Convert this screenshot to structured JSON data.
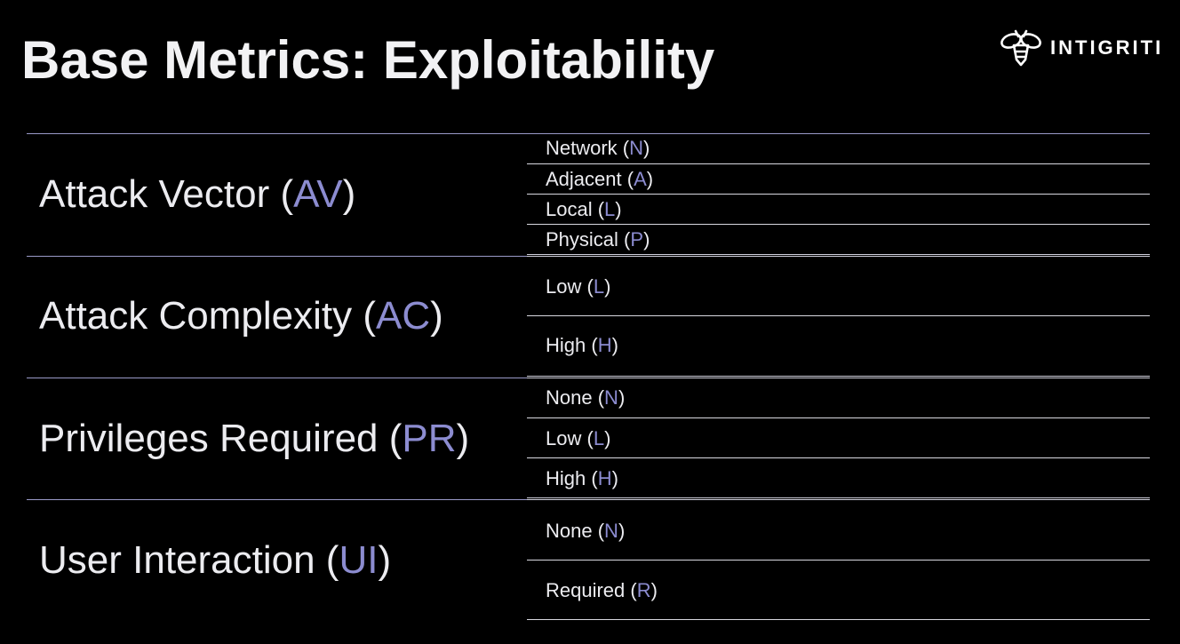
{
  "slide": {
    "title": "Base Metrics: Exploitability",
    "logo_text": "INTIGRITI"
  },
  "colors": {
    "background": "#000000",
    "accent": "#8c8cd0",
    "divider": "#9a9ac8"
  },
  "metrics": [
    {
      "name": "Attack Vector",
      "abbr": "AV",
      "options": [
        {
          "label": "Network",
          "abbr": "N"
        },
        {
          "label": "Adjacent",
          "abbr": "A"
        },
        {
          "label": "Local",
          "abbr": "L"
        },
        {
          "label": "Physical",
          "abbr": "P"
        }
      ]
    },
    {
      "name": "Attack Complexity",
      "abbr": "AC",
      "options": [
        {
          "label": "Low",
          "abbr": "L"
        },
        {
          "label": "High",
          "abbr": "H"
        }
      ]
    },
    {
      "name": "Privileges Required",
      "abbr": "PR",
      "options": [
        {
          "label": "None",
          "abbr": "N"
        },
        {
          "label": "Low",
          "abbr": "L"
        },
        {
          "label": "High",
          "abbr": "H"
        }
      ]
    },
    {
      "name": "User Interaction",
      "abbr": "UI",
      "options": [
        {
          "label": "None",
          "abbr": "N"
        },
        {
          "label": "Required",
          "abbr": "R"
        }
      ]
    }
  ]
}
